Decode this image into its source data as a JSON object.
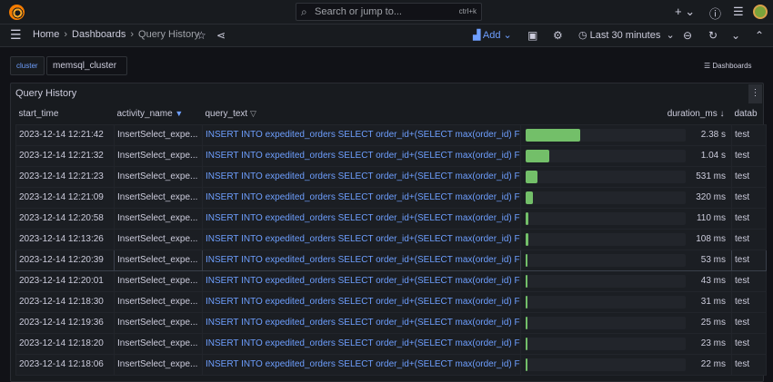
{
  "topbar": {
    "search_placeholder": "Search or jump to...",
    "shortcut": "ctrl+k",
    "icons": [
      "grafana-logo",
      "search-icon",
      "plus-icon",
      "help-icon",
      "rss-icon",
      "avatar"
    ]
  },
  "breadcrumb": [
    "Home",
    "Dashboards",
    "Query History"
  ],
  "toolbar": {
    "add_label": "Add",
    "time_range": "Last 30 minutes"
  },
  "variables": {
    "label": "cluster",
    "value": "memsql_cluster"
  },
  "dashboards_link": "Dashboards",
  "panel": {
    "title": "Query History",
    "columns": [
      "start_time",
      "activity_name",
      "query_text",
      "duration_ms",
      "datab"
    ],
    "bar_color": "#73bf69",
    "bar_max_ms": 7000,
    "rows": [
      [
        "2023-12-14 12:21:42",
        "InsertSelect_expe...",
        "INSERT INTO expedited_orders SELECT order_id+(SELECT max(order_id) FR...",
        2380,
        "2.38 s",
        "test"
      ],
      [
        "2023-12-14 12:21:32",
        "InsertSelect_expe...",
        "INSERT INTO expedited_orders SELECT order_id+(SELECT max(order_id) FR...",
        1040,
        "1.04 s",
        "test"
      ],
      [
        "2023-12-14 12:21:23",
        "InsertSelect_expe...",
        "INSERT INTO expedited_orders SELECT order_id+(SELECT max(order_id) FR...",
        531,
        "531 ms",
        "test"
      ],
      [
        "2023-12-14 12:21:09",
        "InsertSelect_expe...",
        "INSERT INTO expedited_orders SELECT order_id+(SELECT max(order_id) FR...",
        320,
        "320 ms",
        "test"
      ],
      [
        "2023-12-14 12:20:58",
        "InsertSelect_expe...",
        "INSERT INTO expedited_orders SELECT order_id+(SELECT max(order_id) FR...",
        110,
        "110 ms",
        "test"
      ],
      [
        "2023-12-14 12:13:26",
        "InsertSelect_expe...",
        "INSERT INTO expedited_orders SELECT order_id+(SELECT max(order_id) FR...",
        108,
        "108 ms",
        "test"
      ],
      [
        "2023-12-14 12:20:39",
        "InsertSelect_expe...",
        "INSERT INTO expedited_orders SELECT order_id+(SELECT max(order_id) FR...",
        53,
        "53 ms",
        "test"
      ],
      [
        "2023-12-14 12:20:01",
        "InsertSelect_expe...",
        "INSERT INTO expedited_orders SELECT order_id+(SELECT max(order_id) FR...",
        43,
        "43 ms",
        "test"
      ],
      [
        "2023-12-14 12:18:30",
        "InsertSelect_expe...",
        "INSERT INTO expedited_orders SELECT order_id+(SELECT max(order_id) FR...",
        31,
        "31 ms",
        "test"
      ],
      [
        "2023-12-14 12:19:36",
        "InsertSelect_expe...",
        "INSERT INTO expedited_orders SELECT order_id+(SELECT max(order_id) FR...",
        25,
        "25 ms",
        "test"
      ],
      [
        "2023-12-14 12:18:20",
        "InsertSelect_expe...",
        "INSERT INTO expedited_orders SELECT order_id+(SELECT max(order_id) FR...",
        23,
        "23 ms",
        "test"
      ],
      [
        "2023-12-14 12:18:06",
        "InsertSelect_expe...",
        "INSERT INTO expedited_orders SELECT order_id+(SELECT max(order_id) FR...",
        22,
        "22 ms",
        "test"
      ]
    ]
  }
}
